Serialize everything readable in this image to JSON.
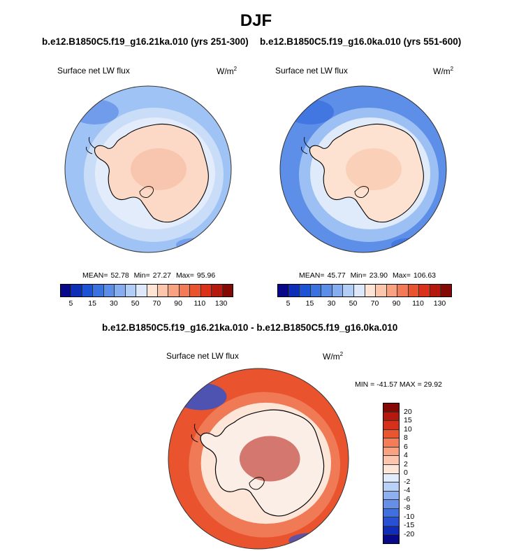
{
  "title": "DJF",
  "panels": [
    {
      "case": "b.e12.B1850C5.f19_g16.21ka.010 (yrs 251-300)",
      "field": "Surface net LW flux",
      "units": "W/m",
      "units_sup": "2",
      "stats": {
        "mean_label": "MEAN=",
        "mean": "52.78",
        "min_label": "Min=",
        "min": "27.27",
        "max_label": "Max=",
        "max": "95.96"
      }
    },
    {
      "case": "b.e12.B1850C5.f19_g16.0ka.010 (yrs 551-600)",
      "field": "Surface net LW flux",
      "units": "W/m",
      "units_sup": "2",
      "stats": {
        "mean_label": "MEAN=",
        "mean": "45.77",
        "min_label": "Min=",
        "min": "23.90",
        "max_label": "Max=",
        "max": "106.63"
      }
    }
  ],
  "diff": {
    "title": "b.e12.B1850C5.f19_g16.21ka.010 - b.e12.B1850C5.f19_g16.0ka.010",
    "field": "Surface net LW flux",
    "units": "W/m",
    "units_sup": "2",
    "minmax": "MIN = -41.57 MAX =  29.92"
  },
  "colorbar": {
    "colors": [
      "#08088a",
      "#0d2fb8",
      "#1c52d4",
      "#3a72e0",
      "#5b8ee8",
      "#86adf0",
      "#b2cdf6",
      "#dde9fb",
      "#fde4d4",
      "#fbc6ab",
      "#f8a281",
      "#f27a57",
      "#e9542f",
      "#d9311a",
      "#b5180c",
      "#840803"
    ],
    "ticks": [
      "5",
      "15",
      "30",
      "50",
      "70",
      "90",
      "110",
      "130"
    ]
  },
  "diff_colorbar": {
    "colors": [
      "#840803",
      "#b5180c",
      "#d7301a",
      "#ea552f",
      "#f47d58",
      "#f8a283",
      "#fbc6ad",
      "#fde6d8",
      "#e0ebfb",
      "#b9d1f6",
      "#8db0f0",
      "#6690e8",
      "#3f70df",
      "#2751d2",
      "#0f2db8",
      "#08088a"
    ],
    "ticks": [
      "20",
      "15",
      "10",
      "8",
      "6",
      "4",
      "2",
      "0",
      "-2",
      "-4",
      "-6",
      "-8",
      "-10",
      "-15",
      "-20"
    ]
  },
  "maps": [
    {
      "ocean": "#9fc3f5",
      "ocean_inner": "#c9dcf8",
      "coast_band": "#e2ecfb",
      "land": "#fbd9c6",
      "accent": "#f6b79a",
      "deep": "#6592e8"
    },
    {
      "ocean": "#5d8fe8",
      "ocean_inner": "#9cc0f3",
      "coast_band": "#dfeafb",
      "land": "#fde2d2",
      "accent": "#f7c1a3",
      "deep": "#3c6fde"
    },
    {
      "ocean": "#e9542f",
      "ocean_inner": "#f07a55",
      "coast_band": "#fde6d8",
      "land": "#fbeee6",
      "accent": "#b5180c",
      "deep": "#2751d2"
    }
  ]
}
